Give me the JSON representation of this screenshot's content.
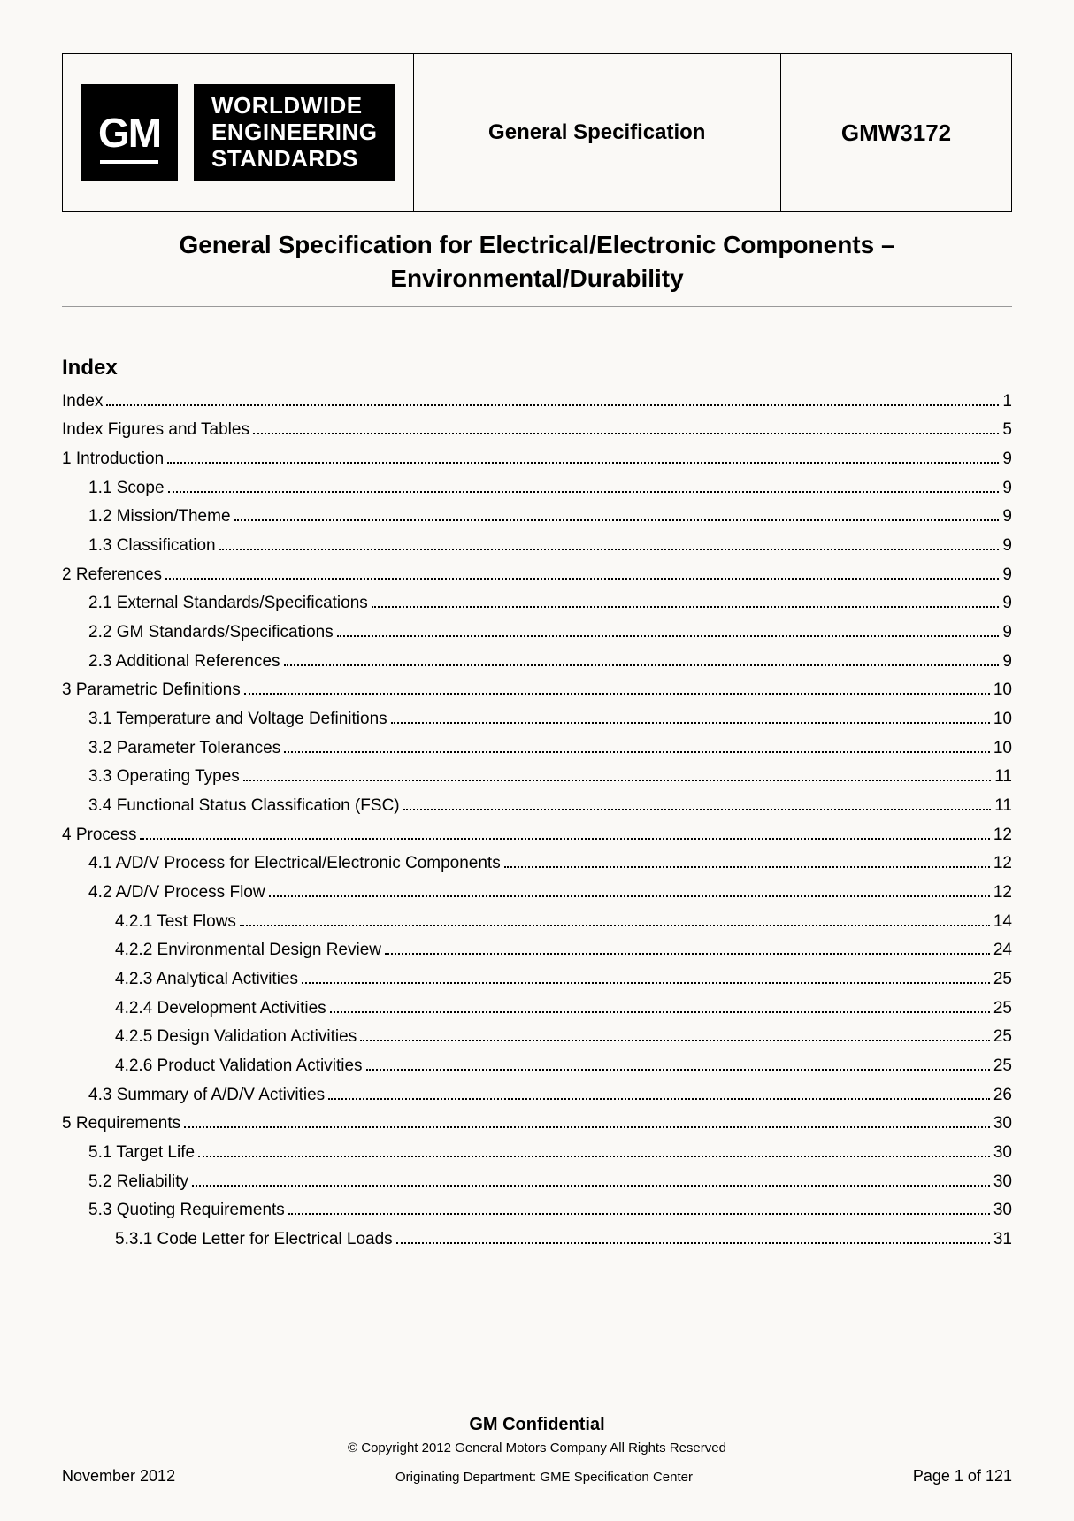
{
  "header": {
    "logo_text": "GM",
    "wes_line1": "WORLDWIDE",
    "wes_line2": "ENGINEERING",
    "wes_line3": "STANDARDS",
    "mid_title": "General Specification",
    "doc_number": "GMW3172"
  },
  "doc_title_line1": "General Specification for Electrical/Electronic Components –",
  "doc_title_line2": "Environmental/Durability",
  "index_heading": "Index",
  "toc": [
    {
      "label": "Index",
      "page": "1",
      "indent": 0
    },
    {
      "label": "Index Figures and Tables",
      "page": "5",
      "indent": 0
    },
    {
      "label": "1 Introduction",
      "page": "9",
      "indent": 0
    },
    {
      "label": "1.1 Scope",
      "page": "9",
      "indent": 1
    },
    {
      "label": "1.2 Mission/Theme",
      "page": "9",
      "indent": 1
    },
    {
      "label": "1.3 Classification",
      "page": "9",
      "indent": 1
    },
    {
      "label": "2 References",
      "page": "9",
      "indent": 0
    },
    {
      "label": "2.1 External Standards/Specifications",
      "page": "9",
      "indent": 1
    },
    {
      "label": "2.2 GM Standards/Specifications",
      "page": "9",
      "indent": 1
    },
    {
      "label": "2.3 Additional References",
      "page": "9",
      "indent": 1
    },
    {
      "label": "3 Parametric Definitions",
      "page": "10",
      "indent": 0
    },
    {
      "label": "3.1 Temperature and Voltage Definitions",
      "page": "10",
      "indent": 1
    },
    {
      "label": "3.2 Parameter Tolerances",
      "page": "10",
      "indent": 1
    },
    {
      "label": "3.3 Operating Types",
      "page": "11",
      "indent": 1
    },
    {
      "label": "3.4 Functional Status Classification (FSC)",
      "page": "11",
      "indent": 1
    },
    {
      "label": "4 Process",
      "page": "12",
      "indent": 0
    },
    {
      "label": "4.1 A/D/V Process for Electrical/Electronic Components",
      "page": "12",
      "indent": 1
    },
    {
      "label": "4.2 A/D/V Process Flow",
      "page": "12",
      "indent": 1
    },
    {
      "label": "4.2.1 Test Flows",
      "page": "14",
      "indent": 2
    },
    {
      "label": "4.2.2 Environmental Design Review",
      "page": "24",
      "indent": 2
    },
    {
      "label": "4.2.3 Analytical Activities",
      "page": "25",
      "indent": 2
    },
    {
      "label": "4.2.4 Development Activities",
      "page": "25",
      "indent": 2
    },
    {
      "label": "4.2.5 Design Validation Activities",
      "page": "25",
      "indent": 2
    },
    {
      "label": "4.2.6 Product Validation Activities",
      "page": "25",
      "indent": 2
    },
    {
      "label": "4.3 Summary of A/D/V Activities",
      "page": "26",
      "indent": 1
    },
    {
      "label": "5 Requirements",
      "page": "30",
      "indent": 0
    },
    {
      "label": "5.1 Target Life",
      "page": "30",
      "indent": 1
    },
    {
      "label": "5.2 Reliability",
      "page": "30",
      "indent": 1
    },
    {
      "label": "5.3 Quoting Requirements",
      "page": "30",
      "indent": 1
    },
    {
      "label": "5.3.1 Code Letter for Electrical Loads",
      "page": "31",
      "indent": 2
    }
  ],
  "footer": {
    "confidential": "GM Confidential",
    "copyright": "© Copyright 2012 General Motors Company All Rights Reserved",
    "date": "November 2012",
    "origin": "Originating Department: GME Specification Center",
    "page": "Page 1 of 121"
  }
}
